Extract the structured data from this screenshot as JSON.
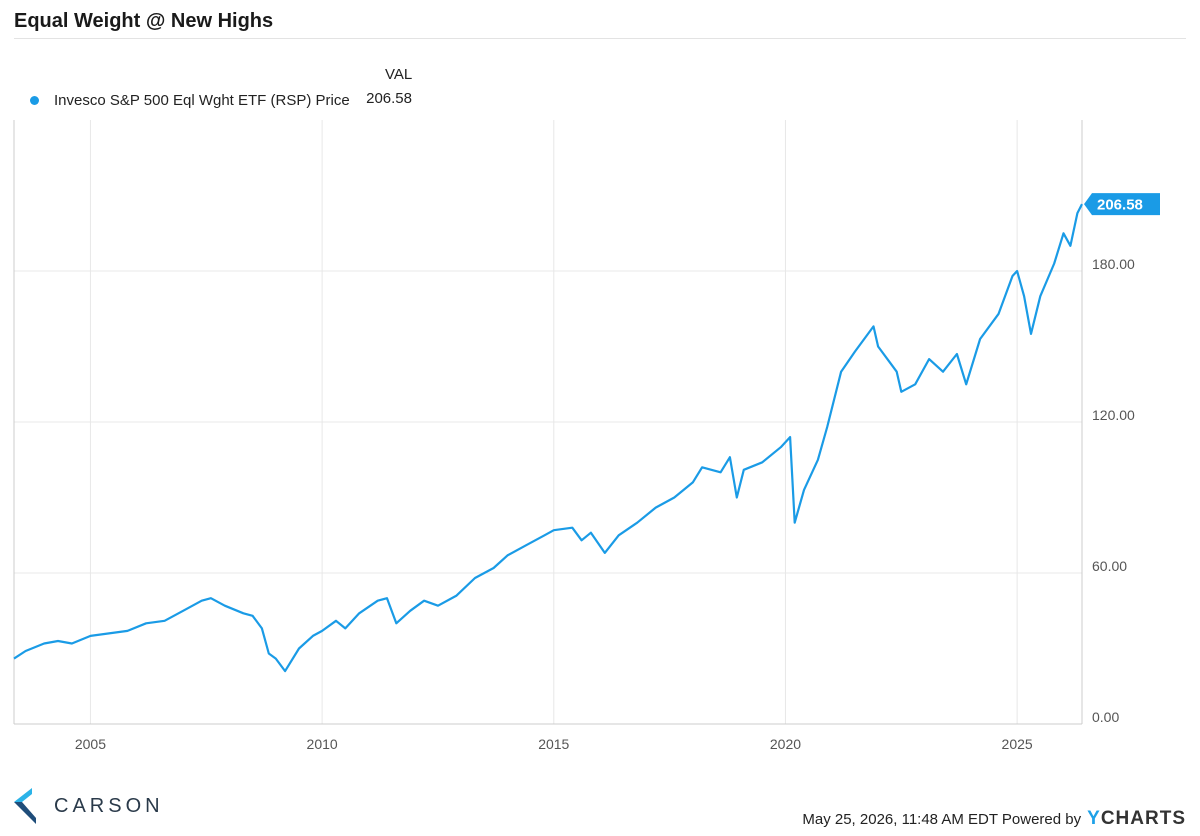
{
  "title": "Equal Weight @ New Highs",
  "legend": {
    "header": "VAL",
    "items": [
      {
        "label": "Invesco S&P 500 Eql Wght ETF (RSP) Price",
        "value": "206.58"
      }
    ]
  },
  "last_value_label": "206.58",
  "colors": {
    "series": "#1a9be6",
    "grid": "#e8e8e8",
    "carson_dark": "#1f4d7a",
    "carson_light": "#2bb3e8"
  },
  "footer": {
    "brand": "CARSON",
    "timestamp": "May 25, 2026, 11:48 AM EDT Powered by",
    "powered_by": "CHARTS",
    "powered_by_mark": "Y"
  },
  "chart_data": {
    "type": "line",
    "title": "Equal Weight @ New Highs",
    "xlabel": "",
    "ylabel": "",
    "x_ticks": [
      "2005",
      "2010",
      "2015",
      "2020",
      "2025"
    ],
    "y_ticks": [
      "0.00",
      "60.00",
      "120.00",
      "180.00"
    ],
    "xlim": [
      2003.35,
      2026.4
    ],
    "ylim": [
      0,
      240
    ],
    "grid": true,
    "legend_position": "top-left",
    "series": [
      {
        "name": "Invesco S&P 500 Eql Wght ETF (RSP) Price",
        "points": [
          [
            2003.35,
            26
          ],
          [
            2003.6,
            29
          ],
          [
            2004.0,
            32
          ],
          [
            2004.3,
            33
          ],
          [
            2004.6,
            32
          ],
          [
            2005.0,
            35
          ],
          [
            2005.4,
            36
          ],
          [
            2005.8,
            37
          ],
          [
            2006.2,
            40
          ],
          [
            2006.6,
            41
          ],
          [
            2007.0,
            45
          ],
          [
            2007.4,
            49
          ],
          [
            2007.6,
            50
          ],
          [
            2007.9,
            47
          ],
          [
            2008.3,
            44
          ],
          [
            2008.5,
            43
          ],
          [
            2008.7,
            38
          ],
          [
            2008.85,
            28
          ],
          [
            2009.0,
            26
          ],
          [
            2009.2,
            21
          ],
          [
            2009.5,
            30
          ],
          [
            2009.8,
            35
          ],
          [
            2010.0,
            37
          ],
          [
            2010.3,
            41
          ],
          [
            2010.5,
            38
          ],
          [
            2010.8,
            44
          ],
          [
            2011.2,
            49
          ],
          [
            2011.4,
            50
          ],
          [
            2011.6,
            40
          ],
          [
            2011.9,
            45
          ],
          [
            2012.2,
            49
          ],
          [
            2012.5,
            47
          ],
          [
            2012.9,
            51
          ],
          [
            2013.3,
            58
          ],
          [
            2013.7,
            62
          ],
          [
            2014.0,
            67
          ],
          [
            2014.4,
            71
          ],
          [
            2014.8,
            75
          ],
          [
            2015.0,
            77
          ],
          [
            2015.4,
            78
          ],
          [
            2015.6,
            73
          ],
          [
            2015.8,
            76
          ],
          [
            2016.1,
            68
          ],
          [
            2016.4,
            75
          ],
          [
            2016.8,
            80
          ],
          [
            2017.2,
            86
          ],
          [
            2017.6,
            90
          ],
          [
            2018.0,
            96
          ],
          [
            2018.2,
            102
          ],
          [
            2018.6,
            100
          ],
          [
            2018.8,
            106
          ],
          [
            2018.95,
            90
          ],
          [
            2019.1,
            101
          ],
          [
            2019.5,
            104
          ],
          [
            2019.9,
            110
          ],
          [
            2020.1,
            114
          ],
          [
            2020.2,
            80
          ],
          [
            2020.4,
            93
          ],
          [
            2020.7,
            105
          ],
          [
            2020.9,
            118
          ],
          [
            2021.2,
            140
          ],
          [
            2021.5,
            148
          ],
          [
            2021.9,
            158
          ],
          [
            2022.0,
            150
          ],
          [
            2022.4,
            140
          ],
          [
            2022.5,
            132
          ],
          [
            2022.8,
            135
          ],
          [
            2023.1,
            145
          ],
          [
            2023.4,
            140
          ],
          [
            2023.7,
            147
          ],
          [
            2023.9,
            135
          ],
          [
            2024.2,
            153
          ],
          [
            2024.6,
            163
          ],
          [
            2024.9,
            178
          ],
          [
            2025.0,
            180
          ],
          [
            2025.15,
            170
          ],
          [
            2025.3,
            155
          ],
          [
            2025.5,
            170
          ],
          [
            2025.8,
            183
          ],
          [
            2026.0,
            195
          ],
          [
            2026.15,
            190
          ],
          [
            2026.3,
            203
          ],
          [
            2026.4,
            206.58
          ]
        ]
      }
    ]
  }
}
